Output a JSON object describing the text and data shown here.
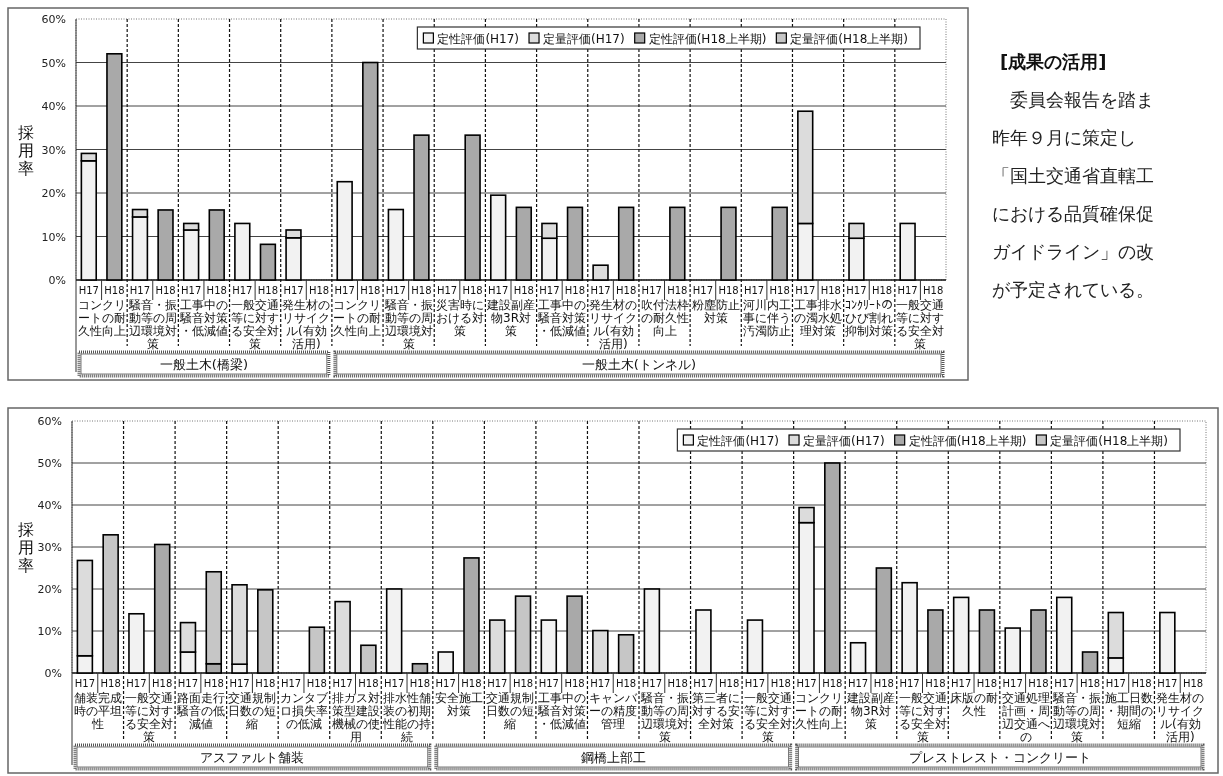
{
  "chart_data": [
    {
      "type": "bar",
      "stacked": true,
      "ylabel": "採用率",
      "ylim": [
        0,
        60
      ],
      "grid": "y",
      "legend": "top right",
      "yticks": [
        {
          "value": 0,
          "label": "0%"
        },
        {
          "value": 10,
          "label": "10%"
        },
        {
          "value": 20,
          "label": "20%"
        },
        {
          "value": 30,
          "label": "30%"
        },
        {
          "value": 40,
          "label": "40%"
        },
        {
          "value": 50,
          "label": "50%"
        },
        {
          "value": 60,
          "label": "60%"
        }
      ],
      "categories": [
        "H17",
        "H18",
        "H17",
        "H18",
        "H17",
        "H18",
        "H17",
        "H18",
        "H17",
        "H18",
        "H17",
        "H18",
        "H17",
        "H18",
        "H17",
        "H18",
        "H17",
        "H18",
        "H17",
        "H18",
        "H17",
        "H18",
        "H17",
        "H18",
        "H17",
        "H18",
        "H17",
        "H18",
        "H17",
        "H18",
        "H17",
        "H18",
        "H17",
        "H18"
      ],
      "series": [
        {
          "name": "定性評価(H17)",
          "color": "#f2f2f2",
          "values": [
            27.4,
            null,
            14.5,
            null,
            11.5,
            null,
            13,
            null,
            9.7,
            null,
            22.6,
            null,
            16.2,
            null,
            null,
            null,
            19.5,
            null,
            9.6,
            null,
            null,
            null,
            null,
            null,
            null,
            null,
            null,
            null,
            13,
            null,
            9.6,
            null,
            13,
            null
          ]
        },
        {
          "name": "定量評価(H17)",
          "color": "#dcdcdc",
          "values": [
            1.7,
            null,
            1.7,
            null,
            1.5,
            null,
            null,
            null,
            1.8,
            null,
            null,
            null,
            null,
            null,
            null,
            null,
            null,
            null,
            3.4,
            null,
            3.4,
            null,
            null,
            null,
            null,
            null,
            null,
            null,
            25.8,
            null,
            3.4,
            null,
            null,
            null
          ]
        },
        {
          "name": "定性評価(H18上半期)",
          "color": "#a9a9a9",
          "values": [
            null,
            52,
            null,
            16.1,
            null,
            16.1,
            null,
            8.2,
            null,
            null,
            null,
            50,
            null,
            33.3,
            null,
            33.3,
            null,
            16.7,
            null,
            16.7,
            null,
            16.7,
            null,
            16.7,
            null,
            16.7,
            null,
            16.7,
            null,
            null,
            null,
            null,
            null,
            null
          ]
        },
        {
          "name": "定量評価(H18上半期)",
          "color": "#c6c6c6",
          "values": [
            null,
            null,
            null,
            null,
            null,
            null,
            null,
            null,
            null,
            null,
            null,
            null,
            null,
            null,
            null,
            null,
            null,
            null,
            null,
            null,
            null,
            null,
            null,
            null,
            null,
            null,
            null,
            null,
            null,
            null,
            null,
            null,
            null,
            null
          ]
        }
      ],
      "annotations": [
        "コンクリートの耐久性向上",
        "騒音・振動等の周辺環境対策",
        "工事中の騒音対策・低減値",
        "一般交通等に対する安全対策",
        "発生材のリサイクル(有効活用)",
        "コンクリートの耐久性向上",
        "騒音・振動等の周辺環境対策",
        "災害時における対策",
        "建設副産物3R対策",
        "工事中の騒音対策・低減値",
        "発生材のリサイクル(有効活用)",
        "吹付法枠の耐久性向上",
        "粉塵防止対策",
        "河川内工事に伴う汚濁防止",
        "工事排水の濁水処理対策",
        "ｺﾝｸﾘｰﾄのひび割れ抑制対策",
        "一般交通等に対する安全対策",
        "一般土木(橋梁)",
        "一般土木(トンネル)"
      ]
    },
    {
      "type": "other",
      "title": "[成果の活用]",
      "annotations": [
        "　委員会報告を踏ま",
        "昨年９月に策定し",
        "「国土交通省直轄工",
        "における品質確保促",
        "ガイドライン」の改",
        "が予定されている。"
      ]
    },
    {
      "type": "bar",
      "stacked": true,
      "ylabel": "採用率",
      "ylim": [
        0,
        60
      ],
      "grid": "y",
      "legend": "top right",
      "yticks": [
        {
          "value": 0,
          "label": "0%"
        },
        {
          "value": 10,
          "label": "10%"
        },
        {
          "value": 20,
          "label": "20%"
        },
        {
          "value": 30,
          "label": "30%"
        },
        {
          "value": 40,
          "label": "40%"
        },
        {
          "value": 50,
          "label": "50%"
        },
        {
          "value": 60,
          "label": "60%"
        }
      ],
      "categories": [
        "H17",
        "H18",
        "H17",
        "H18",
        "H17",
        "H18",
        "H17",
        "H18",
        "H17",
        "H18",
        "H17",
        "H18",
        "H17",
        "H18",
        "H17",
        "H18",
        "H17",
        "H18",
        "H17",
        "H18",
        "H17",
        "H18",
        "H17",
        "H18",
        "H17",
        "H18",
        "H17",
        "H18",
        "H17",
        "H18",
        "H17",
        "H18",
        "H17",
        "H18",
        "H17",
        "H18",
        "H17",
        "H18",
        "H17",
        "H18",
        "H17",
        "H18",
        "H17",
        "H18"
      ],
      "series": [
        {
          "name": "定性評価(H17)",
          "color": "#f2f2f2",
          "values": [
            4.1,
            null,
            14.1,
            null,
            5,
            null,
            2.1,
            null,
            null,
            null,
            null,
            null,
            20,
            null,
            5,
            null,
            null,
            null,
            12.6,
            null,
            null,
            null,
            20,
            null,
            15,
            null,
            12.6,
            null,
            35.8,
            null,
            7.2,
            null,
            21.5,
            null,
            18,
            null,
            10.7,
            null,
            18,
            null,
            3.6,
            null,
            14.4,
            null
          ]
        },
        {
          "name": "定量評価(H17)",
          "color": "#dcdcdc",
          "values": [
            22.7,
            null,
            null,
            null,
            7,
            null,
            18.9,
            null,
            null,
            null,
            17,
            null,
            null,
            null,
            null,
            null,
            12.6,
            null,
            null,
            null,
            10.1,
            null,
            null,
            null,
            null,
            null,
            null,
            null,
            3.6,
            null,
            null,
            null,
            null,
            null,
            null,
            null,
            null,
            null,
            null,
            null,
            10.8,
            null,
            null,
            null
          ]
        },
        {
          "name": "定性評価(H18上半期)",
          "color": "#a9a9a9",
          "values": [
            null,
            null,
            null,
            30.6,
            null,
            2.2,
            null,
            null,
            null,
            null,
            null,
            null,
            null,
            2.2,
            null,
            27.4,
            null,
            null,
            null,
            18.3,
            null,
            null,
            null,
            null,
            null,
            null,
            null,
            null,
            null,
            50,
            null,
            25,
            null,
            15,
            null,
            15,
            null,
            15,
            null,
            5,
            null,
            null,
            null,
            null
          ]
        },
        {
          "name": "定量評価(H18上半期)",
          "color": "#c6c6c6",
          "values": [
            null,
            32.9,
            null,
            null,
            null,
            21.9,
            null,
            19.8,
            null,
            10.9,
            null,
            6.6,
            null,
            null,
            null,
            null,
            null,
            18.3,
            null,
            null,
            null,
            9.1,
            null,
            null,
            null,
            null,
            null,
            null,
            null,
            null,
            null,
            null,
            null,
            null,
            null,
            null,
            null,
            null,
            null,
            null,
            null,
            null,
            null,
            null
          ]
        }
      ],
      "annotations": [
        "舗装完成時の平坦性",
        "一般交通等に対する安全対策",
        "路面走行騒音の低減値",
        "交通規制日数の短縮",
        "カンタブロ損失率の低減",
        "排ガス対策型建設機械の使用",
        "排水性舗装の初期性能の持続",
        "安全施工対策",
        "交通規制日数の短縮",
        "工事中の騒音対策・低減値",
        "キャンバーの精度管理",
        "騒音・振動等の周辺環境対策",
        "第三者に対する安全対策",
        "一般交通等に対する安全対策",
        "コンクリートの耐久性向上",
        "建設副産物3R対策",
        "一般交通等に対する安全対策",
        "床版の耐久性",
        "交通処理計画・周辺交通への",
        "騒音・振動等の周辺環境対策",
        "施工日数・期間の短縮",
        "発生材のリサイクル(有効活用)",
        "アスファルト舗装",
        "鋼橋上部工",
        "プレストレスト・コンクリート"
      ]
    }
  ]
}
